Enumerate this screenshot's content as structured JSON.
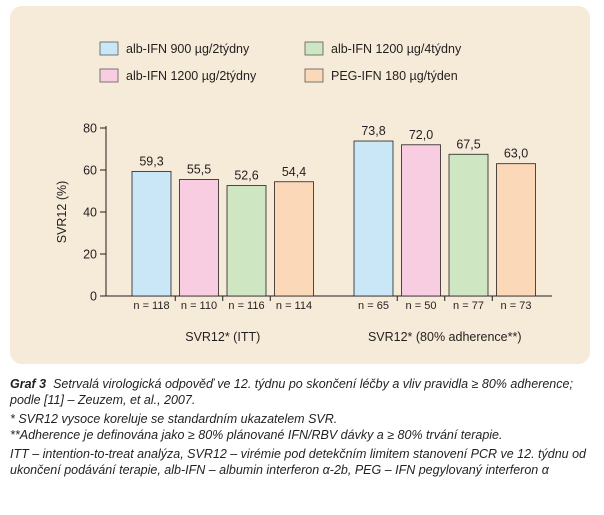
{
  "legend": [
    {
      "label": "alb-IFN 900 µg/2týdny",
      "color": "#c9e7f7"
    },
    {
      "label": "alb-IFN 1200 µg/4týdny",
      "color": "#cfe6c2"
    },
    {
      "label": "alb-IFN 1200 µg/2týdny",
      "color": "#f9cde1"
    },
    {
      "label": "PEG-IFN 180 µg/týden",
      "color": "#fbd9b8"
    }
  ],
  "chart_data": {
    "type": "bar",
    "ylabel": "SVR12 (%)",
    "ylim": [
      0,
      80
    ],
    "yticks": [
      0,
      20,
      40,
      60,
      80
    ],
    "groups": [
      {
        "label": "SVR12* (ITT)",
        "bars": [
          {
            "series": "alb-IFN 900 µg/2týdny",
            "value": 59.3,
            "value_label": "59,3",
            "n_label": "n = 118"
          },
          {
            "series": "alb-IFN 1200 µg/2týdny",
            "value": 55.5,
            "value_label": "55,5",
            "n_label": "n = 110"
          },
          {
            "series": "alb-IFN 1200 µg/4týdny",
            "value": 52.6,
            "value_label": "52,6",
            "n_label": "n = 116"
          },
          {
            "series": "PEG-IFN 180 µg/týden",
            "value": 54.4,
            "value_label": "54,4",
            "n_label": "n = 114"
          }
        ]
      },
      {
        "label": "SVR12* (80% adherence**)",
        "bars": [
          {
            "series": "alb-IFN 900 µg/2týdny",
            "value": 73.8,
            "value_label": "73,8",
            "n_label": "n = 65"
          },
          {
            "series": "alb-IFN 1200 µg/2týdny",
            "value": 72.0,
            "value_label": "72,0",
            "n_label": "n = 50"
          },
          {
            "series": "alb-IFN 1200 µg/4týdny",
            "value": 67.5,
            "value_label": "67,5",
            "n_label": "n = 77"
          },
          {
            "series": "PEG-IFN 180 µg/týden",
            "value": 63.0,
            "value_label": "63,0",
            "n_label": "n = 73"
          }
        ]
      }
    ]
  },
  "caption": {
    "bold": "Graf 3",
    "text": "Setrvalá virologická odpověď ve 12. týdnu po skončení léčby a vliv pravidla ≥ 80% adherence; podle [11] – Zeuzem, et al., 2007.",
    "note1": "* SVR12 vysoce koreluje se standardním ukazatelem SVR.",
    "note2": "**Adherence je definována jako ≥ 80% plánované IFN/RBV dávky a ≥ 80% trvání terapie.",
    "abbrev": "ITT – intention-to-treat analýza, SVR12 – virémie pod detekčním limitem stanovení PCR ve 12. týdnu od ukončení podávání terapie, alb-IFN – albumin interferon α-2b, PEG – IFN pegylovaný interferon α"
  }
}
